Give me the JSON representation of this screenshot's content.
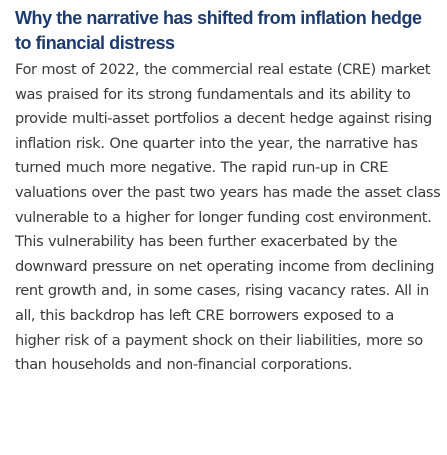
{
  "section": {
    "heading": "Why the narrative has shifted from inflation hedge to financial distress",
    "body": "For most of 2022, the commercial real estate (CRE) market was praised for its strong fundamentals and its ability to provide multi-asset portfolios a decent hedge against rising inflation risk. One quarter into the year, the narrative has turned much more negative. The rapid run-up in CRE valuations over the past two years has made the asset class vulnerable to a higher for longer funding cost environment. This vulnerability has been further exacerbated by the downward pressure on net operating income from declining rent growth and, in some cases, rising vacancy rates. All in all, this backdrop has left CRE borrowers exposed to a higher risk of a payment shock on their liabilities, more so than households and non-financial corporations."
  },
  "colors": {
    "heading": "#1d3b6e",
    "body_text": "#3a3a3a",
    "background": "#ffffff"
  }
}
